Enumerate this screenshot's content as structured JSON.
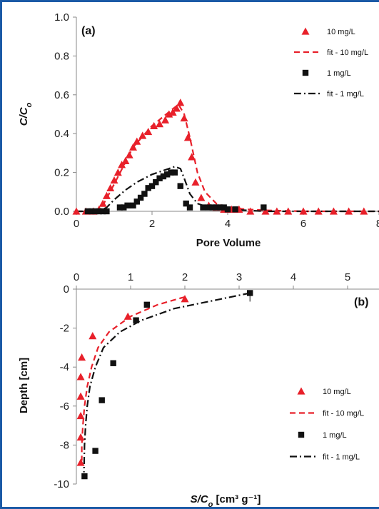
{
  "chart_data": [
    {
      "type": "scatter",
      "panel_label": "(a)",
      "xlabel": "Pore Volume",
      "ylabel": "C/C",
      "ylabel_sub": "o",
      "xlim": [
        0,
        8
      ],
      "ylim": [
        0,
        1.0
      ],
      "x_ticks": [
        "0",
        "2",
        "4",
        "6",
        "8"
      ],
      "y_ticks": [
        "0.0",
        "0.2",
        "0.4",
        "0.6",
        "0.8",
        "1.0"
      ],
      "grid": false,
      "legend_position": "top-right",
      "colors": {
        "red": "#e8202a",
        "black": "#111111"
      },
      "series": [
        {
          "name": "10 mg/L",
          "style": "markers",
          "marker": "triangle",
          "color": "#e8202a",
          "x": [
            0.0,
            0.25,
            0.45,
            0.6,
            0.7,
            0.8,
            0.9,
            1.0,
            1.1,
            1.2,
            1.3,
            1.4,
            1.5,
            1.6,
            1.75,
            1.9,
            2.05,
            2.2,
            2.35,
            2.45,
            2.55,
            2.65,
            2.75,
            2.85,
            2.95,
            3.05,
            3.15,
            3.3,
            3.5,
            3.7,
            3.9,
            4.1,
            4.3,
            4.6,
            5.0,
            5.3,
            5.6,
            6.0,
            6.4,
            6.8,
            7.2,
            7.6
          ],
          "y": [
            0.0,
            0.0,
            0.0,
            0.01,
            0.04,
            0.08,
            0.12,
            0.16,
            0.2,
            0.24,
            0.26,
            0.29,
            0.33,
            0.36,
            0.39,
            0.41,
            0.44,
            0.45,
            0.47,
            0.5,
            0.51,
            0.53,
            0.56,
            0.48,
            0.38,
            0.28,
            0.15,
            0.07,
            0.03,
            0.02,
            0.01,
            0.01,
            0.01,
            0.0,
            0.0,
            0.0,
            0.0,
            0.0,
            0.0,
            0.0,
            0.0,
            0.0
          ]
        },
        {
          "name": "fit - 10 mg/L",
          "style": "dashed",
          "color": "#e8202a",
          "x": [
            0.0,
            0.5,
            0.7,
            1.0,
            1.5,
            2.0,
            2.5,
            2.7,
            2.85,
            3.0,
            3.2,
            3.4,
            3.7,
            4.0,
            4.5,
            5.0,
            6.0,
            8.0
          ],
          "y": [
            0.0,
            0.0,
            0.03,
            0.14,
            0.33,
            0.44,
            0.52,
            0.55,
            0.5,
            0.38,
            0.2,
            0.1,
            0.04,
            0.02,
            0.01,
            0.005,
            0.0,
            0.0
          ]
        },
        {
          "name": "1 mg/L",
          "style": "markers",
          "marker": "square",
          "color": "#111111",
          "x": [
            0.3,
            0.4,
            0.5,
            0.6,
            0.7,
            0.8,
            1.15,
            1.25,
            1.35,
            1.5,
            1.6,
            1.7,
            1.8,
            1.9,
            2.0,
            2.1,
            2.2,
            2.3,
            2.4,
            2.5,
            2.6,
            2.75,
            2.9,
            3.0,
            3.35,
            3.5,
            3.6,
            3.7,
            3.8,
            3.9,
            4.0,
            4.2,
            4.95
          ],
          "y": [
            0.0,
            0.0,
            0.0,
            0.0,
            0.0,
            0.0,
            0.02,
            0.02,
            0.03,
            0.03,
            0.05,
            0.07,
            0.09,
            0.12,
            0.13,
            0.15,
            0.17,
            0.18,
            0.19,
            0.2,
            0.2,
            0.13,
            0.04,
            0.02,
            0.02,
            0.02,
            0.02,
            0.02,
            0.02,
            0.02,
            0.01,
            0.01,
            0.02
          ]
        },
        {
          "name": "fit - 1 mg/L",
          "style": "dashdot",
          "color": "#111111",
          "x": [
            0.0,
            0.6,
            0.8,
            1.0,
            1.3,
            1.6,
            2.0,
            2.3,
            2.6,
            2.75,
            2.85,
            3.0,
            3.2,
            3.5,
            4.0,
            5.0,
            8.0
          ],
          "y": [
            0.0,
            0.0,
            0.02,
            0.06,
            0.11,
            0.15,
            0.19,
            0.21,
            0.23,
            0.22,
            0.17,
            0.09,
            0.04,
            0.02,
            0.01,
            0.0,
            0.0
          ]
        }
      ]
    },
    {
      "type": "scatter",
      "panel_label": "(b)",
      "xlabel": "S/C",
      "xlabel_sub": "o",
      "xlabel_unit": " [cm³ g⁻¹]",
      "ylabel": "Depth [cm]",
      "xlim": [
        0,
        5
      ],
      "ylim": [
        -10,
        0
      ],
      "x_ticks": [
        "0",
        "1",
        "2",
        "3",
        "4",
        "5"
      ],
      "y_ticks": [
        "0",
        "-2",
        "-4",
        "-6",
        "-8",
        "-10"
      ],
      "x_axis_position": "top",
      "grid": false,
      "legend_position": "bottom-right",
      "series": [
        {
          "name": "10 mg/L",
          "style": "markers",
          "marker": "triangle",
          "color": "#e8202a",
          "x": [
            2.0,
            0.95,
            0.3,
            0.1,
            0.08,
            0.08,
            0.08,
            0.08,
            0.08
          ],
          "y": [
            -0.5,
            -1.4,
            -2.4,
            -3.5,
            -4.5,
            -5.5,
            -6.5,
            -7.6,
            -8.9
          ]
        },
        {
          "name": "fit - 10 mg/L",
          "style": "dashed",
          "color": "#e8202a",
          "x": [
            2.0,
            1.5,
            1.0,
            0.6,
            0.4,
            0.28,
            0.2,
            0.15,
            0.12,
            0.1,
            0.1
          ],
          "y": [
            -0.4,
            -0.8,
            -1.4,
            -2.2,
            -3.0,
            -4.0,
            -5.0,
            -6.0,
            -7.0,
            -8.0,
            -8.8
          ]
        },
        {
          "name": "1 mg/L",
          "style": "markers",
          "marker": "square",
          "color": "#111111",
          "x": [
            3.2,
            1.3,
            1.1,
            0.68,
            0.47,
            0.35,
            0.15
          ],
          "y": [
            -0.2,
            -0.8,
            -1.6,
            -3.8,
            -5.7,
            -8.3,
            -9.6
          ]
        },
        {
          "name": "fit - 1 mg/L",
          "style": "dashdot",
          "color": "#111111",
          "x": [
            3.2,
            2.5,
            1.8,
            1.2,
            0.8,
            0.5,
            0.35,
            0.25,
            0.2,
            0.17,
            0.15,
            0.14
          ],
          "y": [
            -0.2,
            -0.6,
            -1.0,
            -1.6,
            -2.2,
            -3.0,
            -4.0,
            -5.0,
            -6.0,
            -7.0,
            -8.0,
            -9.4
          ]
        }
      ]
    }
  ]
}
